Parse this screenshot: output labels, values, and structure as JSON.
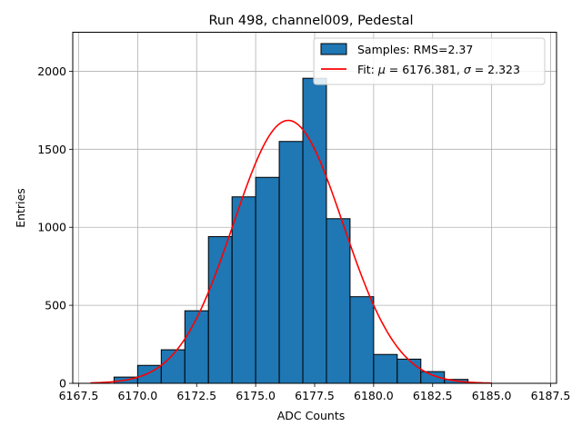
{
  "chart_data": {
    "type": "bar",
    "title": "Run 498, channel009, Pedestal",
    "xlabel": "ADC Counts",
    "ylabel": "Entries",
    "xlim": [
      6167.25,
      6187.75
    ],
    "ylim": [
      0,
      2250
    ],
    "grid": true,
    "legend_position": "top-right",
    "x_ticks": [
      "6167.5",
      "6170.0",
      "6172.5",
      "6175.0",
      "6177.5",
      "6180.0",
      "6182.5",
      "6185.0",
      "6187.5"
    ],
    "y_ticks": [
      "0",
      "500",
      "1000",
      "1500",
      "2000"
    ],
    "histogram": {
      "name": "Samples: RMS=2.37",
      "color": "#1f77b4",
      "bin_edges": [
        6169,
        6170,
        6171,
        6172,
        6173,
        6174,
        6175,
        6176,
        6177,
        6178,
        6179,
        6180,
        6181,
        6182,
        6183,
        6184
      ],
      "counts": [
        40,
        115,
        215,
        465,
        940,
        1195,
        1320,
        1550,
        1955,
        1055,
        555,
        185,
        155,
        75,
        25
      ]
    },
    "fit": {
      "label_prefix": "Fit: ",
      "mu_symbol": "μ",
      "mu_text": " = 6176.381, ",
      "sigma_symbol": "σ",
      "sigma_text": " = 2.323",
      "color": "#ff0000",
      "mu": 6176.381,
      "sigma": 2.323,
      "amplitude": 1685,
      "x_range": [
        6168,
        6185
      ]
    }
  }
}
